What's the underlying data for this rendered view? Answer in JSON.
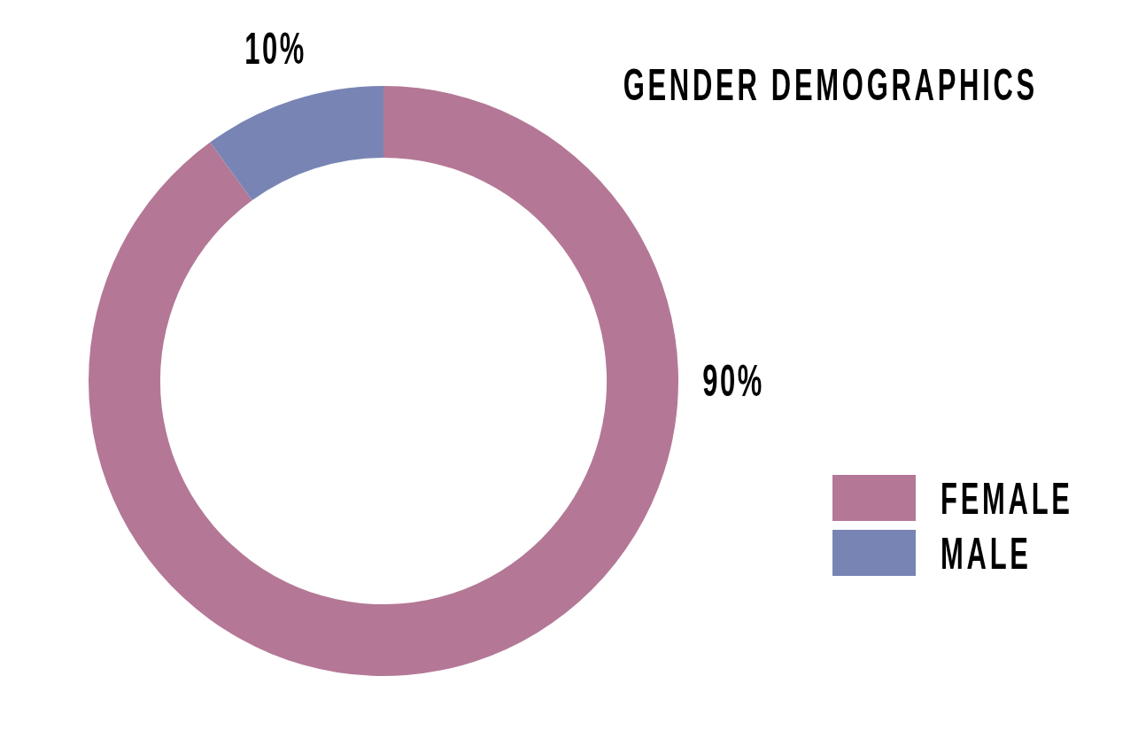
{
  "chart_data": {
    "type": "donut",
    "title": "GENDER DEMOGRAPHICS",
    "categories": [
      "FEMALE",
      "MALE"
    ],
    "values": [
      90,
      10
    ],
    "colors": [
      "#b47896",
      "#7885b4"
    ],
    "value_labels": [
      "90%",
      "10%"
    ],
    "legend": "right"
  }
}
